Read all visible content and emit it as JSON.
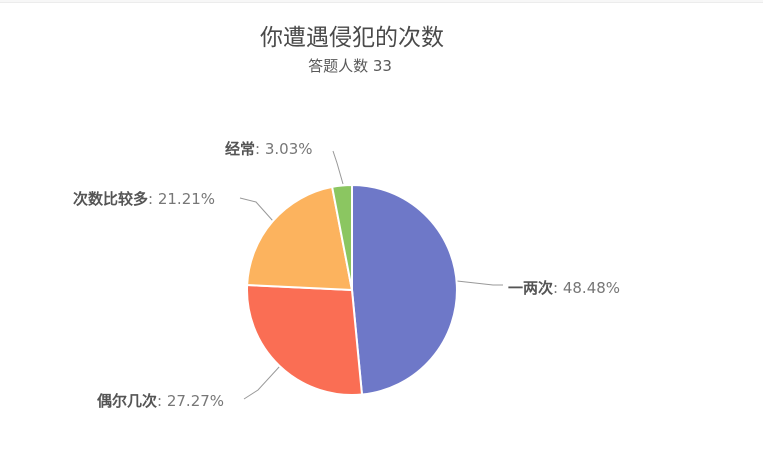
{
  "chart_data": {
    "type": "pie",
    "title": "你遭遇侵犯的次数",
    "subtitle": "答题人数 33",
    "respondents": 33,
    "direction": "clockwise",
    "start_angle_deg": 0,
    "legend_position": "none",
    "slices": [
      {
        "label": "一两次",
        "value": 48.48,
        "percent_text": ": 48.48%",
        "color": "#6e78c8"
      },
      {
        "label": "偶尔几次",
        "value": 27.27,
        "percent_text": ": 27.27%",
        "color": "#fa6e54"
      },
      {
        "label": "次数比较多",
        "value": 21.21,
        "percent_text": ": 21.21%",
        "color": "#fcb35e"
      },
      {
        "label": "经常",
        "value": 3.03,
        "percent_text": ": 3.03%",
        "color": "#8bc661"
      }
    ],
    "slice_border_color": "#ffffff",
    "label_name_color": "#555555",
    "label_value_color": "#777777",
    "connector_line_color": "#999999",
    "title_color": "#4a4a4a",
    "subtitle_color": "#595959"
  }
}
